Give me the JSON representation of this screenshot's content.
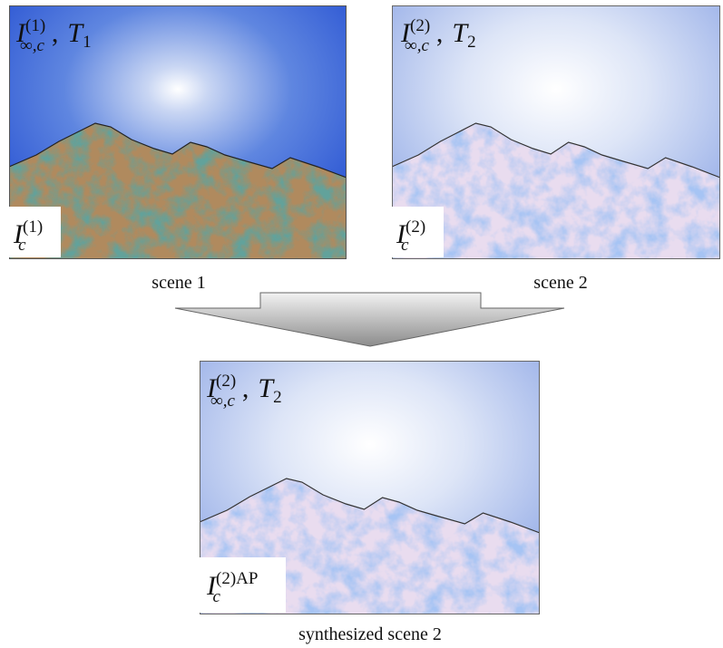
{
  "panels": [
    {
      "caption": "scene 1",
      "top_label": {
        "base": "I",
        "sup": "(1)",
        "sub": "∞,c",
        "separator": ",",
        "param": "T",
        "param_sub": "1"
      },
      "bottom_label": {
        "base": "I",
        "sup": "(1)",
        "sub": "c"
      }
    },
    {
      "caption": "scene 2",
      "top_label": {
        "base": "I",
        "sup": "(2)",
        "sub": "∞,c",
        "separator": ",",
        "param": "T",
        "param_sub": "2"
      },
      "bottom_label": {
        "base": "I",
        "sup": "(2)",
        "sub": "c"
      }
    },
    {
      "caption": "synthesized scene 2",
      "top_label": {
        "base": "I",
        "sup": "(2)",
        "sub": "∞,c",
        "separator": ",",
        "param": "T",
        "param_sub": "2"
      },
      "bottom_label": {
        "base": "I",
        "sup": "(2)AP",
        "sub": "c"
      }
    }
  ]
}
